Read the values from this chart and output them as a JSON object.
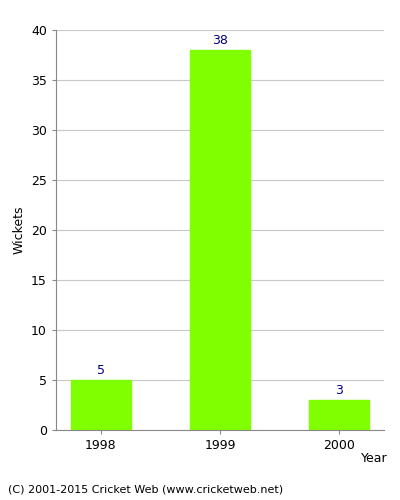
{
  "years": [
    "1998",
    "1999",
    "2000"
  ],
  "values": [
    5,
    38,
    3
  ],
  "bar_color": "#7fff00",
  "bar_edge_color": "#7fff00",
  "label_color": "#000080",
  "xlabel": "Year",
  "ylabel": "Wickets",
  "ylim": [
    0,
    40
  ],
  "yticks": [
    0,
    5,
    10,
    15,
    20,
    25,
    30,
    35,
    40
  ],
  "label_fontsize": 9,
  "axis_label_fontsize": 9,
  "tick_fontsize": 9,
  "footer_text": "(C) 2001-2015 Cricket Web (www.cricketweb.net)",
  "footer_fontsize": 8,
  "background_color": "#ffffff",
  "plot_bg_color": "#ffffff",
  "grid_color": "#c8c8c8"
}
